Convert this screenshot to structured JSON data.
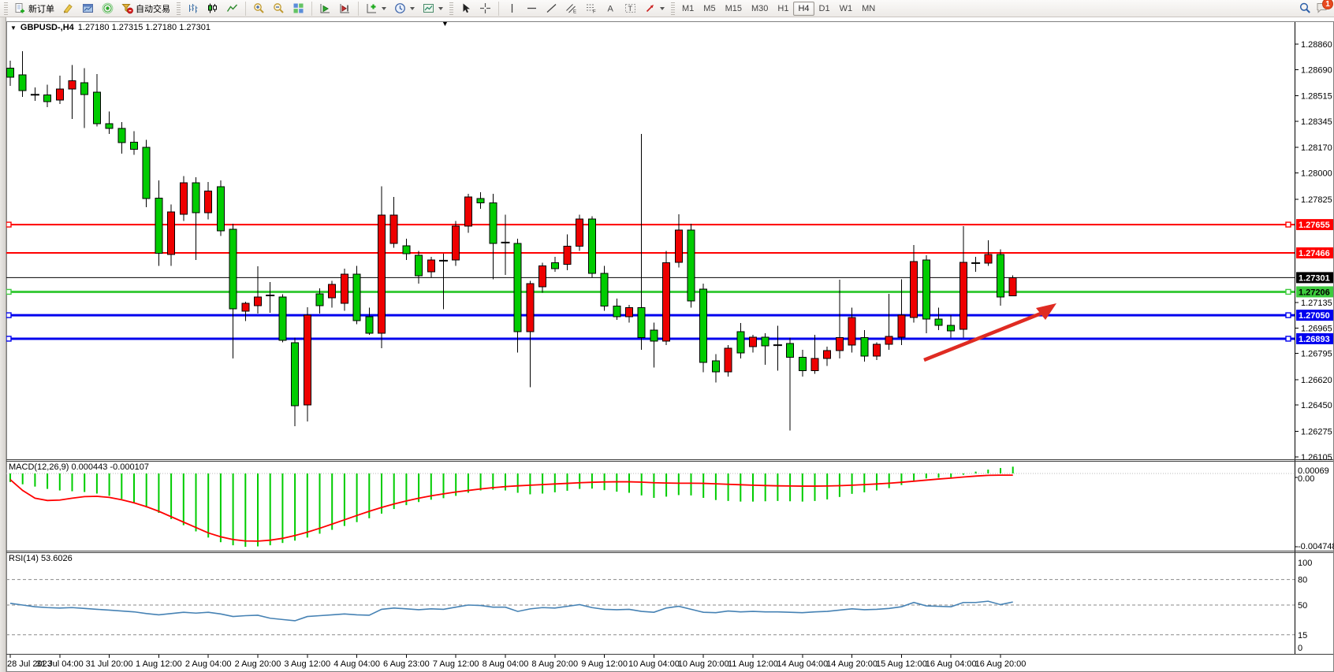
{
  "toolbar": {
    "new_order": "新订单",
    "auto_trading": "自动交易",
    "timeframes": [
      "M1",
      "M5",
      "M15",
      "M30",
      "H1",
      "H4",
      "D1",
      "W1",
      "MN"
    ],
    "active_timeframe": "H4",
    "notification_badge": "1",
    "icons": [
      "new-order",
      "metaeditor",
      "market",
      "signals",
      "auto-trading",
      "bar-chart",
      "candlestick-chart",
      "line-chart",
      "zoom-in",
      "zoom-out",
      "tile-windows",
      "auto-scroll",
      "chart-shift",
      "indicators",
      "periods",
      "templates",
      "cursor",
      "crosshair",
      "vertical-line",
      "horizontal-line",
      "trendline",
      "equidistant-channel",
      "fibonacci",
      "text",
      "text-label",
      "arrows",
      "search",
      "chat"
    ]
  },
  "chart": {
    "title": {
      "symbol": "GBPUSD-,H4",
      "ohlc": "1.27180 1.27315 1.27180 1.27301"
    },
    "macd_label": "MACD(12,26,9) 0.000443 -0.000107",
    "rsi_label": "RSI(14) 53.6026",
    "collapse_caret": "▼",
    "symbol_caret": "▼"
  },
  "chart_data": {
    "type": "candlestick",
    "symbol": "GBPUSD-",
    "period": "H4",
    "current": {
      "open": 1.2718,
      "high": 1.27315,
      "low": 1.2718,
      "close": 1.27301,
      "bid": 1.27301
    },
    "price_ticks": [
      1.2886,
      1.2869,
      1.28515,
      1.28345,
      1.2817,
      1.28,
      1.27825,
      1.27135,
      1.26965,
      1.26795,
      1.2662,
      1.2645,
      1.26275,
      1.26105
    ],
    "hlines": [
      {
        "price": 1.27655,
        "color": "#ff0000",
        "width": 2,
        "label_bg": "#ff0000",
        "label_fg": "#ffffff",
        "handles": true
      },
      {
        "price": 1.27466,
        "color": "#ff0000",
        "width": 2,
        "label_bg": "#ff0000",
        "label_fg": "#ffffff",
        "handles": false
      },
      {
        "price": 1.27301,
        "color": "#000000",
        "width": 1,
        "label_bg": "#000000",
        "label_fg": "#ffffff",
        "handles": false
      },
      {
        "price": 1.27206,
        "color": "#3dcb3d",
        "width": 3,
        "label_bg": "#3dcb3d",
        "label_fg": "#000000",
        "handles": true
      },
      {
        "price": 1.2705,
        "color": "#0000ee",
        "width": 3,
        "label_bg": "#0000ee",
        "label_fg": "#ffffff",
        "handles": true
      },
      {
        "price": 1.26893,
        "color": "#0000ee",
        "width": 3,
        "label_bg": "#0000ee",
        "label_fg": "#ffffff",
        "handles": true
      }
    ],
    "time_labels": [
      "28 Jul 2023",
      "31 Jul 04:00",
      "31 Jul 20:00",
      "1 Aug 12:00",
      "2 Aug 04:00",
      "2 Aug 20:00",
      "3 Aug 12:00",
      "4 Aug 04:00",
      "6 Aug 23:00",
      "7 Aug 12:00",
      "8 Aug 04:00",
      "8 Aug 20:00",
      "9 Aug 12:00",
      "10 Aug 04:00",
      "10 Aug 20:00",
      "11 Aug 12:00",
      "14 Aug 04:00",
      "14 Aug 20:00",
      "15 Aug 12:00",
      "16 Aug 04:00",
      "16 Aug 20:00"
    ],
    "candles": [
      [
        1.287,
        1.2875,
        1.2858,
        1.2864
      ],
      [
        1.28655,
        1.28813,
        1.28508,
        1.2855
      ],
      [
        1.28528,
        1.2857,
        1.2848,
        1.28522
      ],
      [
        1.28522,
        1.2859,
        1.2844,
        1.28477
      ],
      [
        1.28487,
        1.2865,
        1.2846,
        1.2856
      ],
      [
        1.2856,
        1.2872,
        1.2836,
        1.28615
      ],
      [
        1.28602,
        1.287,
        1.283,
        1.28523
      ],
      [
        1.28539,
        1.2866,
        1.2831,
        1.28329
      ],
      [
        1.28328,
        1.2841,
        1.2826,
        1.28298
      ],
      [
        1.28298,
        1.2834,
        1.2813,
        1.28202
      ],
      [
        1.28206,
        1.2828,
        1.2812,
        1.28159
      ],
      [
        1.2817,
        1.2822,
        1.2777,
        1.27829
      ],
      [
        1.27832,
        1.2795,
        1.2738,
        1.27464
      ],
      [
        1.27456,
        1.2779,
        1.2738,
        1.2774
      ],
      [
        1.27724,
        1.2798,
        1.2768,
        1.27934
      ],
      [
        1.27934,
        1.2797,
        1.2742,
        1.27734
      ],
      [
        1.27734,
        1.2794,
        1.2769,
        1.2788
      ],
      [
        1.27908,
        1.2795,
        1.2758,
        1.27613
      ],
      [
        1.27624,
        1.2766,
        1.26761,
        1.27093
      ],
      [
        1.27077,
        1.2714,
        1.2701,
        1.27129
      ],
      [
        1.27114,
        1.27377,
        1.2706,
        1.27171
      ],
      [
        1.27171,
        1.27271,
        1.27066,
        1.27182
      ],
      [
        1.27171,
        1.2719,
        1.2687,
        1.26882
      ],
      [
        1.26866,
        1.269,
        1.26309,
        1.26446
      ],
      [
        1.26451,
        1.27103,
        1.2634,
        1.2705
      ],
      [
        1.27192,
        1.2723,
        1.2706,
        1.27114
      ],
      [
        1.27166,
        1.2728,
        1.271,
        1.27256
      ],
      [
        1.27129,
        1.2736,
        1.2708,
        1.27324
      ],
      [
        1.27324,
        1.2738,
        1.2699,
        1.27014
      ],
      [
        1.2704,
        1.271,
        1.2692,
        1.2693
      ],
      [
        1.2693,
        1.2791,
        1.2683,
        1.27719
      ],
      [
        1.2753,
        1.2784,
        1.275,
        1.27719
      ],
      [
        1.27513,
        1.2756,
        1.2742,
        1.27461
      ],
      [
        1.2745,
        1.2748,
        1.2726,
        1.27314
      ],
      [
        1.2734,
        1.2744,
        1.273,
        1.27419
      ],
      [
        1.27419,
        1.2746,
        1.2709,
        1.27414
      ],
      [
        1.27419,
        1.2768,
        1.2738,
        1.27645
      ],
      [
        1.27645,
        1.2786,
        1.276,
        1.2784
      ],
      [
        1.2783,
        1.2787,
        1.2776,
        1.278
      ],
      [
        1.278,
        1.2786,
        1.2729,
        1.2753
      ],
      [
        1.2753,
        1.2772,
        1.2732,
        1.27535
      ],
      [
        1.2753,
        1.2756,
        1.268,
        1.2694
      ],
      [
        1.2694,
        1.2728,
        1.2657,
        1.2726
      ],
      [
        1.2724,
        1.274,
        1.272,
        1.2738
      ],
      [
        1.274,
        1.2744,
        1.2734,
        1.2736
      ],
      [
        1.2739,
        1.2759,
        1.2735,
        1.2751
      ],
      [
        1.2751,
        1.2772,
        1.2748,
        1.27692
      ],
      [
        1.27692,
        1.2771,
        1.273,
        1.2733
      ],
      [
        1.2733,
        1.2738,
        1.2708,
        1.2711
      ],
      [
        1.2711,
        1.2716,
        1.2702,
        1.2704
      ],
      [
        1.2704,
        1.2712,
        1.27,
        1.271
      ],
      [
        1.271,
        1.2826,
        1.2682,
        1.269
      ],
      [
        1.2695,
        1.27,
        1.267,
        1.26877
      ],
      [
        1.26877,
        1.2748,
        1.2685,
        1.274
      ],
      [
        1.27403,
        1.27724,
        1.2737,
        1.27619
      ],
      [
        1.27619,
        1.2766,
        1.271,
        1.27145
      ],
      [
        1.27224,
        1.2726,
        1.2667,
        1.26735
      ],
      [
        1.26746,
        1.2679,
        1.266,
        1.26672
      ],
      [
        1.26672,
        1.2685,
        1.2664,
        1.2683
      ],
      [
        1.2694,
        1.26998,
        1.2676,
        1.26798
      ],
      [
        1.2684,
        1.2692,
        1.268,
        1.26903
      ],
      [
        1.26903,
        1.2693,
        1.2672,
        1.26845
      ],
      [
        1.26845,
        1.2698,
        1.2668,
        1.2685
      ],
      [
        1.2686,
        1.269,
        1.2628,
        1.2677
      ],
      [
        1.2677,
        1.2682,
        1.2664,
        1.2668
      ],
      [
        1.2668,
        1.2692,
        1.2666,
        1.2676
      ],
      [
        1.2676,
        1.2684,
        1.2671,
        1.26814
      ],
      [
        1.26814,
        1.27288,
        1.2676,
        1.269
      ],
      [
        1.26851,
        1.271,
        1.268,
        1.27035
      ],
      [
        1.269,
        1.2695,
        1.2674,
        1.26777
      ],
      [
        1.26777,
        1.2687,
        1.2675,
        1.26856
      ],
      [
        1.26856,
        1.27192,
        1.2682,
        1.26908
      ],
      [
        1.26903,
        1.2729,
        1.2685,
        1.2705
      ],
      [
        1.27035,
        1.2752,
        1.27,
        1.27408
      ],
      [
        1.27419,
        1.2745,
        1.26929,
        1.27024
      ],
      [
        1.27024,
        1.271,
        1.2695,
        1.26982
      ],
      [
        1.26982,
        1.2705,
        1.269,
        1.26945
      ],
      [
        1.26956,
        1.27645,
        1.269,
        1.27403
      ],
      [
        1.27403,
        1.2744,
        1.2734,
        1.27398
      ],
      [
        1.27398,
        1.2755,
        1.2738,
        1.27456
      ],
      [
        1.27456,
        1.2749,
        1.27114,
        1.27171
      ],
      [
        1.2718,
        1.27315,
        1.2718,
        1.27301
      ]
    ],
    "colors": {
      "bull": "#ee0000",
      "bear": "#00cc00",
      "wick": "#000000",
      "macd_hist": "#00cc00",
      "macd_signal": "#ff0000",
      "rsi_line": "#4682b4",
      "arrow": "#df2b22"
    },
    "macd": {
      "params": "12,26,9",
      "main": 0.000443,
      "signal_now": -0.000107,
      "axis_labels": [
        "0.00069",
        "0.00",
        "-0.004748"
      ],
      "hist_x1000": [
        -0.55,
        -0.7,
        -0.85,
        -1.0,
        -1.1,
        -1.15,
        -1.2,
        -1.3,
        -1.45,
        -1.65,
        -1.9,
        -2.2,
        -2.55,
        -2.95,
        -3.35,
        -3.75,
        -4.15,
        -4.45,
        -4.65,
        -4.75,
        -4.72,
        -4.65,
        -4.5,
        -4.35,
        -4.15,
        -3.9,
        -3.65,
        -3.4,
        -3.15,
        -2.9,
        -2.6,
        -2.3,
        -2.05,
        -1.85,
        -1.7,
        -1.6,
        -1.45,
        -1.25,
        -1.1,
        -1.05,
        -1.1,
        -1.25,
        -1.35,
        -1.3,
        -1.22,
        -1.12,
        -1.0,
        -0.98,
        -1.08,
        -1.18,
        -1.25,
        -1.42,
        -1.58,
        -1.5,
        -1.4,
        -1.42,
        -1.58,
        -1.72,
        -1.78,
        -1.82,
        -1.82,
        -1.8,
        -1.78,
        -1.8,
        -1.82,
        -1.78,
        -1.68,
        -1.52,
        -1.32,
        -1.22,
        -1.1,
        -0.95,
        -0.75,
        -0.45,
        -0.32,
        -0.28,
        -0.25,
        -0.08,
        0.12,
        0.25,
        0.35,
        0.44
      ],
      "signal_x1000": [
        -0.4,
        -1.1,
        -1.6,
        -1.75,
        -1.72,
        -1.6,
        -1.5,
        -1.48,
        -1.55,
        -1.7,
        -1.9,
        -2.15,
        -2.45,
        -2.8,
        -3.15,
        -3.5,
        -3.85,
        -4.1,
        -4.28,
        -4.37,
        -4.38,
        -4.32,
        -4.2,
        -4.02,
        -3.8,
        -3.55,
        -3.28,
        -3.0,
        -2.72,
        -2.45,
        -2.2,
        -1.98,
        -1.78,
        -1.6,
        -1.45,
        -1.32,
        -1.2,
        -1.1,
        -1.0,
        -0.92,
        -0.85,
        -0.8,
        -0.76,
        -0.72,
        -0.68,
        -0.64,
        -0.6,
        -0.57,
        -0.55,
        -0.54,
        -0.54,
        -0.56,
        -0.6,
        -0.62,
        -0.63,
        -0.63,
        -0.64,
        -0.67,
        -0.7,
        -0.73,
        -0.76,
        -0.78,
        -0.8,
        -0.81,
        -0.82,
        -0.82,
        -0.81,
        -0.79,
        -0.76,
        -0.72,
        -0.68,
        -0.63,
        -0.57,
        -0.5,
        -0.43,
        -0.36,
        -0.3,
        -0.23,
        -0.17,
        -0.12,
        -0.11,
        -0.107
      ]
    },
    "rsi": {
      "period": 14,
      "value": 53.6026,
      "axis_labels": [
        "100",
        "80",
        "50",
        "15",
        "0"
      ],
      "levels": [
        80,
        50,
        15
      ],
      "values": [
        52,
        50,
        48,
        47,
        46.5,
        47,
        46,
        45,
        44,
        43,
        42,
        40,
        38.5,
        40,
        41.5,
        40.5,
        41.5,
        39.5,
        36.5,
        37.5,
        38,
        34.5,
        33,
        31.5,
        36.5,
        37.5,
        38.5,
        39.5,
        38.5,
        38,
        45,
        46.5,
        45.5,
        44.5,
        45.5,
        45,
        47.5,
        50,
        49.5,
        47.5,
        47.5,
        42.5,
        45.5,
        47,
        46.5,
        48.5,
        50.5,
        47,
        45,
        44.5,
        45,
        42.5,
        41.5,
        46.5,
        48.5,
        45,
        41.5,
        41,
        43,
        42,
        42.5,
        42,
        42,
        41.5,
        41,
        42,
        42.5,
        44,
        45.5,
        44.5,
        45,
        46,
        48,
        53,
        49,
        48.5,
        48,
        53,
        53,
        54.5,
        50.5,
        53.6
      ]
    },
    "annotations": [
      {
        "type": "arrow",
        "from": [
          1172,
          457
        ],
        "to": [
          1338,
          387
        ],
        "color": "#df2b22"
      }
    ]
  }
}
